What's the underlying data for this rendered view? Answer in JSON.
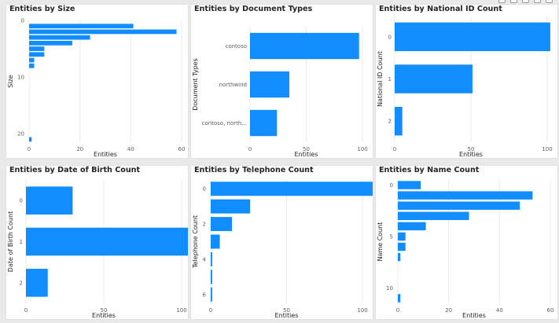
{
  "colors": {
    "bar": "#118DFF",
    "grid": "#ebebeb",
    "tick": "#605e5c",
    "label": "#252423"
  },
  "chart_data": [
    {
      "id": "size",
      "type": "bar",
      "orientation": "horizontal",
      "title": "Entities by Size",
      "xlabel": "Entities",
      "ylabel": "Size",
      "y_axis": "numeric",
      "ylim": [
        0,
        21.5
      ],
      "yticks": [
        0,
        10,
        20
      ],
      "xlim": [
        0,
        60
      ],
      "xticks": [
        0,
        20,
        40,
        60
      ],
      "points": [
        {
          "y": 1,
          "value": 41
        },
        {
          "y": 2,
          "value": 58
        },
        {
          "y": 3,
          "value": 24
        },
        {
          "y": 4,
          "value": 17
        },
        {
          "y": 5,
          "value": 6
        },
        {
          "y": 6,
          "value": 6
        },
        {
          "y": 7,
          "value": 2
        },
        {
          "y": 8,
          "value": 2
        },
        {
          "y": 21,
          "value": 1
        }
      ]
    },
    {
      "id": "doc-types",
      "type": "bar",
      "orientation": "horizontal",
      "title": "Entities by Document Types",
      "xlabel": "Entities",
      "ylabel": "Document Types",
      "y_axis": "category",
      "categories": [
        "contoso",
        "northwind",
        "contoso, north..."
      ],
      "values": [
        97,
        35,
        24
      ],
      "xlim": [
        0,
        100
      ],
      "xticks": [
        0,
        50,
        100
      ]
    },
    {
      "id": "national-id",
      "type": "bar",
      "orientation": "horizontal",
      "title": "Entities by National ID Count",
      "xlabel": "Entities",
      "ylabel": "National ID Count",
      "y_axis": "category",
      "categories": [
        "0",
        "1",
        "2"
      ],
      "values": [
        102,
        51,
        5
      ],
      "xlim": [
        0,
        100
      ],
      "xticks": [
        0,
        50,
        100
      ]
    },
    {
      "id": "dob",
      "type": "bar",
      "orientation": "horizontal",
      "title": "Entities by Date of Birth Count",
      "xlabel": "Entities",
      "ylabel": "Date of Birth Count",
      "y_axis": "category",
      "categories": [
        "0",
        "1",
        "2"
      ],
      "values": [
        30,
        114,
        14
      ],
      "xlim": [
        0,
        100
      ],
      "xticks": [
        0,
        50,
        100
      ]
    },
    {
      "id": "telephone",
      "type": "bar",
      "orientation": "horizontal",
      "title": "Entities by Telephone Count",
      "xlabel": "Entities",
      "ylabel": "Telephone Count",
      "y_axis": "numeric",
      "ylim": [
        -0.5,
        6.5
      ],
      "yticks": [
        0,
        2,
        4,
        6
      ],
      "xlim": [
        0,
        100
      ],
      "xticks": [
        0,
        50,
        100
      ],
      "points": [
        {
          "y": 0,
          "value": 108
        },
        {
          "y": 1,
          "value": 26
        },
        {
          "y": 2,
          "value": 14
        },
        {
          "y": 3,
          "value": 6
        },
        {
          "y": 4,
          "value": 1
        },
        {
          "y": 5,
          "value": 1
        },
        {
          "y": 6,
          "value": 1
        }
      ]
    },
    {
      "id": "name",
      "type": "bar",
      "orientation": "horizontal",
      "title": "Entities by Name Count",
      "xlabel": "Entities",
      "ylabel": "Name Count",
      "y_axis": "numeric",
      "ylim": [
        -0.5,
        11.5
      ],
      "yticks": [
        0,
        5,
        10
      ],
      "xlim": [
        0,
        60
      ],
      "xticks": [
        0,
        20,
        40,
        60
      ],
      "points": [
        {
          "y": 0,
          "value": 9
        },
        {
          "y": 1,
          "value": 53
        },
        {
          "y": 2,
          "value": 48
        },
        {
          "y": 3,
          "value": 28
        },
        {
          "y": 4,
          "value": 11
        },
        {
          "y": 5,
          "value": 3
        },
        {
          "y": 6,
          "value": 3
        },
        {
          "y": 7,
          "value": 1
        },
        {
          "y": 11,
          "value": 1
        }
      ]
    }
  ]
}
